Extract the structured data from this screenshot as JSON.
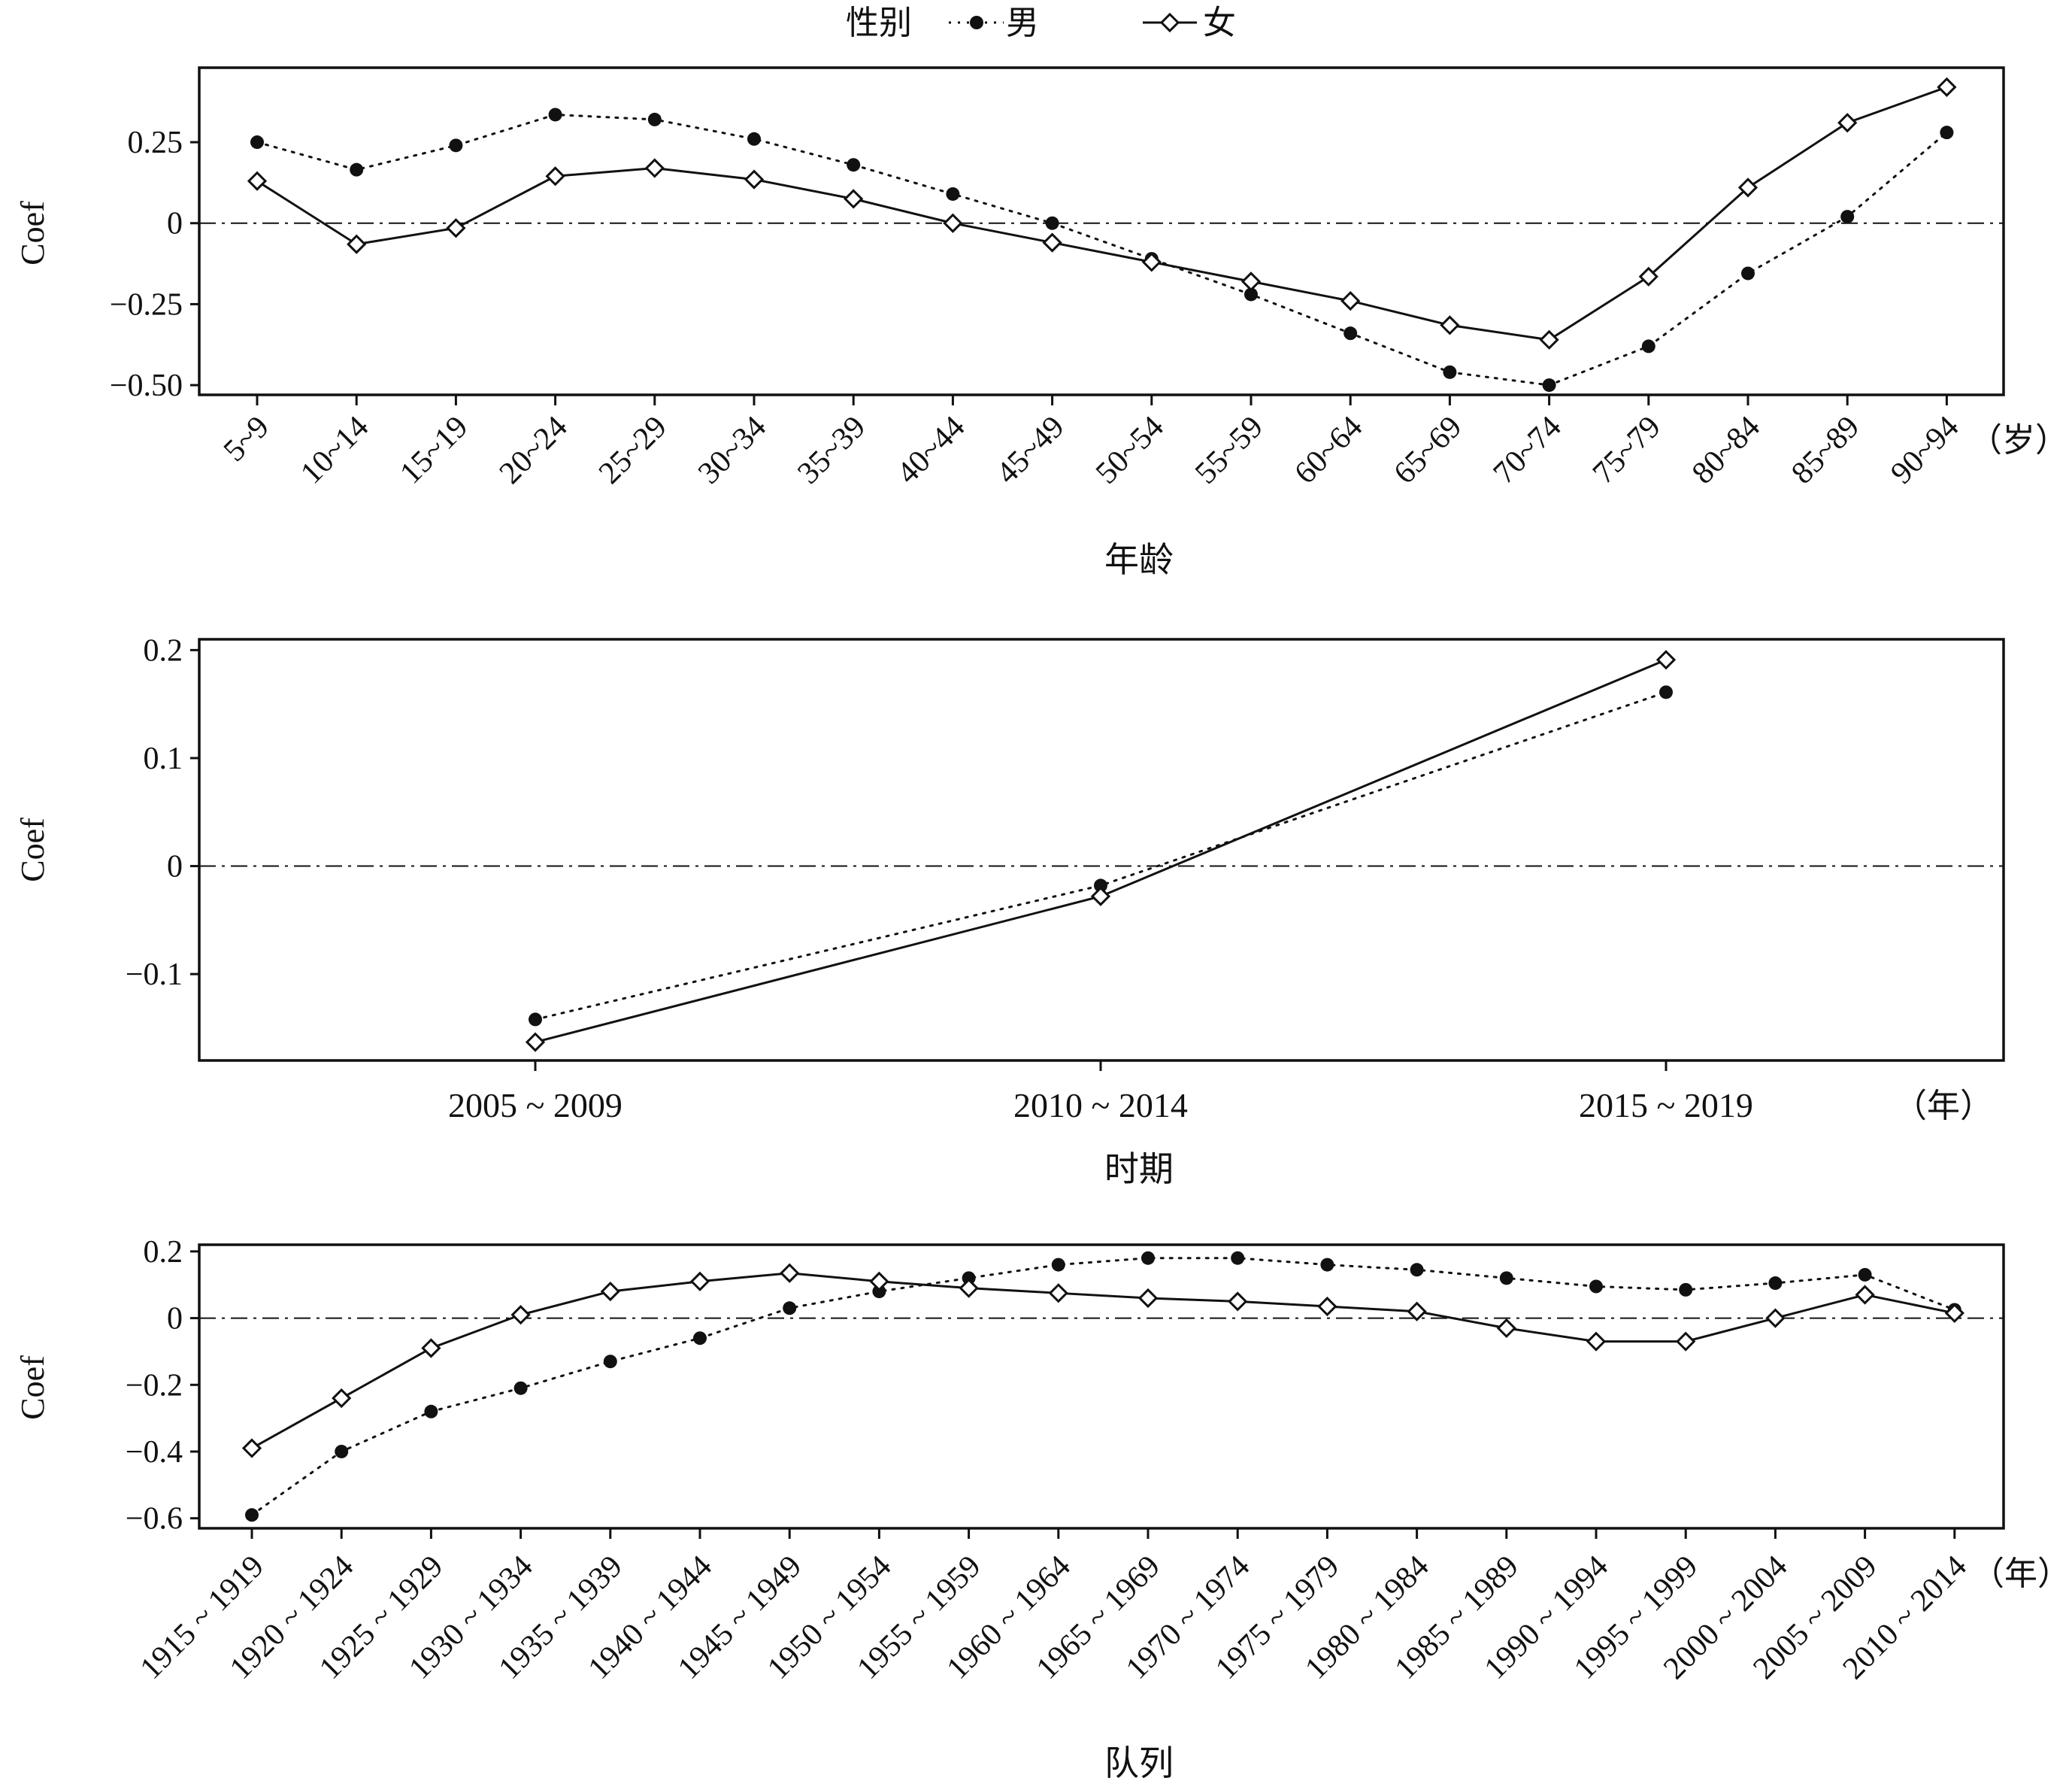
{
  "legend": {
    "title": "性别",
    "male_label": "男",
    "female_label": "女"
  },
  "colors": {
    "ink": "#111111",
    "background": "#ffffff"
  },
  "chart_data": [
    {
      "type": "line",
      "panel": "age",
      "xlabel": "年龄",
      "unit_label": "（岁）",
      "ylabel": "Coef",
      "ylim": [
        -0.53,
        0.48
      ],
      "yticks": [
        0.25,
        0,
        -0.25,
        -0.5
      ],
      "ytick_labels": [
        "0.25",
        "0",
        "−0.25",
        "−0.50"
      ],
      "categories": [
        "5~9",
        "10~14",
        "15~19",
        "20~24",
        "25~29",
        "30~34",
        "35~39",
        "40~44",
        "45~49",
        "50~54",
        "55~59",
        "60~64",
        "65~69",
        "70~74",
        "75~79",
        "80~84",
        "85~89",
        "90~94"
      ],
      "series": [
        {
          "name": "男",
          "marker": "dot",
          "line": "dotted",
          "values": [
            0.25,
            0.165,
            0.24,
            0.335,
            0.32,
            0.26,
            0.18,
            0.09,
            0.0,
            -0.11,
            -0.22,
            -0.34,
            -0.46,
            -0.5,
            -0.38,
            -0.155,
            0.02,
            0.28
          ]
        },
        {
          "name": "女",
          "marker": "diamond",
          "line": "solid",
          "values": [
            0.13,
            -0.065,
            -0.015,
            0.145,
            0.17,
            0.135,
            0.075,
            0.0,
            -0.06,
            -0.12,
            -0.18,
            -0.24,
            -0.315,
            -0.36,
            -0.165,
            0.11,
            0.31,
            0.42
          ]
        }
      ],
      "reference_line": 0
    },
    {
      "type": "line",
      "panel": "period",
      "xlabel": "时期",
      "unit_label": "（年）",
      "ylabel": "Coef",
      "ylim": [
        -0.18,
        0.21
      ],
      "yticks": [
        0.2,
        0.1,
        0,
        -0.1
      ],
      "ytick_labels": [
        "0.2",
        "0.1",
        "0",
        "−0.1"
      ],
      "categories": [
        "2005 ~ 2009",
        "2010 ~ 2014",
        "2015 ~ 2019"
      ],
      "series": [
        {
          "name": "男",
          "marker": "dot",
          "line": "dotted",
          "values": [
            -0.142,
            -0.018,
            0.161
          ]
        },
        {
          "name": "女",
          "marker": "diamond",
          "line": "solid",
          "values": [
            -0.163,
            -0.028,
            0.191
          ]
        }
      ],
      "reference_line": 0
    },
    {
      "type": "line",
      "panel": "cohort",
      "xlabel": "队列",
      "unit_label": "（年）",
      "ylabel": "Coef",
      "ylim": [
        -0.63,
        0.22
      ],
      "yticks": [
        0.2,
        0,
        -0.2,
        -0.4,
        -0.6
      ],
      "ytick_labels": [
        "0.2",
        "0",
        "−0.2",
        "−0.4",
        "−0.6"
      ],
      "categories": [
        "1915 ~ 1919",
        "1920 ~ 1924",
        "1925 ~ 1929",
        "1930 ~ 1934",
        "1935 ~ 1939",
        "1940 ~ 1944",
        "1945 ~ 1949",
        "1950 ~ 1954",
        "1955 ~ 1959",
        "1960 ~ 1964",
        "1965 ~ 1969",
        "1970 ~ 1974",
        "1975 ~ 1979",
        "1980 ~ 1984",
        "1985 ~ 1989",
        "1990 ~ 1994",
        "1995 ~ 1999",
        "2000 ~ 2004",
        "2005 ~ 2009",
        "2010 ~ 2014"
      ],
      "series": [
        {
          "name": "男",
          "marker": "dot",
          "line": "dotted",
          "values": [
            -0.59,
            -0.4,
            -0.28,
            -0.21,
            -0.13,
            -0.06,
            0.03,
            0.08,
            0.12,
            0.16,
            0.18,
            0.18,
            0.16,
            0.145,
            0.12,
            0.095,
            0.085,
            0.105,
            0.13,
            0.025
          ]
        },
        {
          "name": "女",
          "marker": "diamond",
          "line": "solid",
          "values": [
            -0.39,
            -0.24,
            -0.09,
            0.01,
            0.08,
            0.11,
            0.135,
            0.11,
            0.09,
            0.075,
            0.06,
            0.05,
            0.035,
            0.02,
            -0.03,
            -0.07,
            -0.07,
            0.0,
            0.07,
            0.015
          ]
        }
      ],
      "reference_line": 0
    }
  ]
}
